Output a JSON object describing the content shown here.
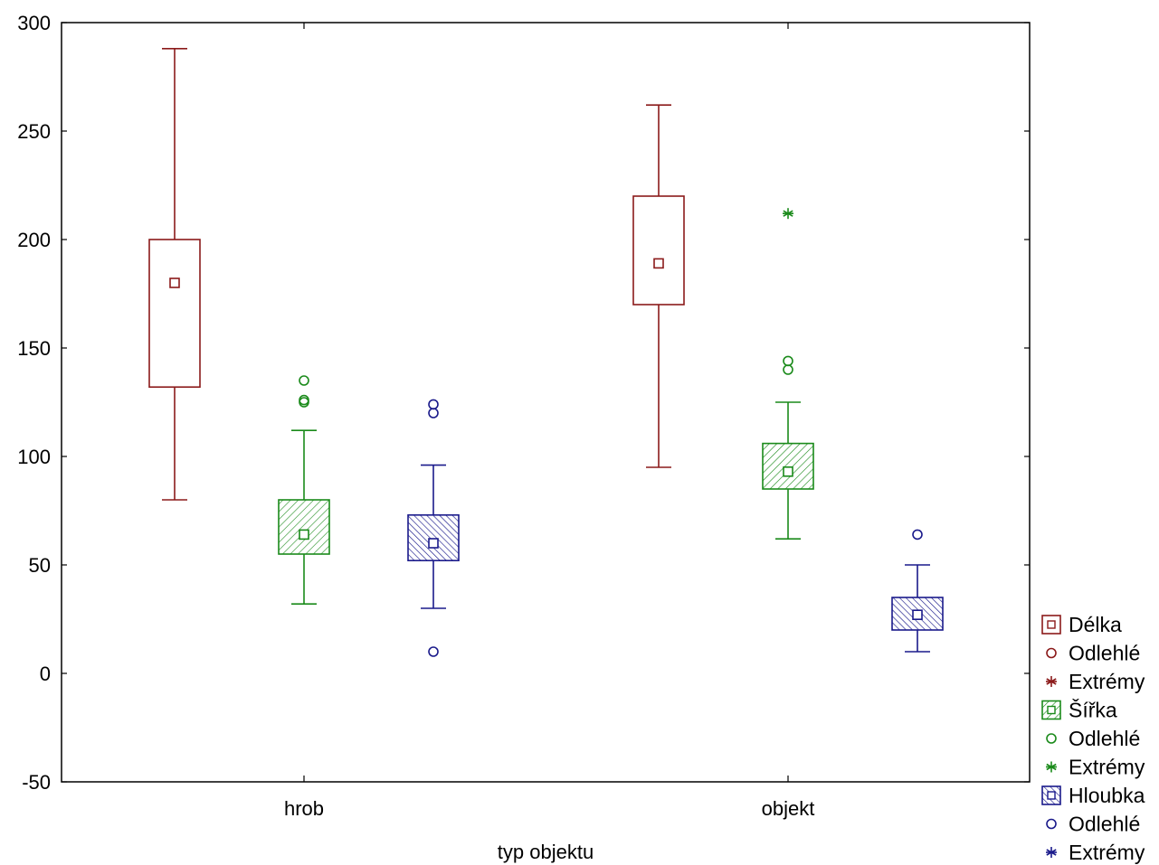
{
  "chart_data": {
    "type": "boxplot",
    "xlabel": "typ objektu",
    "ylabel": "",
    "ylim": [
      -50,
      300
    ],
    "yticks": [
      -50,
      0,
      50,
      100,
      150,
      200,
      250,
      300
    ],
    "categories": [
      "hrob",
      "objekt"
    ],
    "grid": false,
    "legend_position": "bottom-right outside",
    "series": [
      {
        "name": "Délka",
        "color": "#8b1a1a",
        "fill": "none",
        "stats": [
          {
            "category": "hrob",
            "median": 180,
            "q1": 132,
            "q3": 200,
            "whisker_low": 80,
            "whisker_high": 288,
            "outliers": [],
            "extremes": []
          },
          {
            "category": "objekt",
            "median": 189,
            "q1": 170,
            "q3": 220,
            "whisker_low": 95,
            "whisker_high": 262,
            "outliers": [],
            "extremes": []
          }
        ]
      },
      {
        "name": "Šířka",
        "color": "#1a8a1a",
        "fill": "hatch",
        "stats": [
          {
            "category": "hrob",
            "median": 64,
            "q1": 55,
            "q3": 80,
            "whisker_low": 32,
            "whisker_high": 112,
            "outliers": [
              125,
              126,
              135
            ],
            "extremes": []
          },
          {
            "category": "objekt",
            "median": 93,
            "q1": 85,
            "q3": 106,
            "whisker_low": 62,
            "whisker_high": 125,
            "outliers": [
              140,
              144
            ],
            "extremes": [
              212
            ]
          }
        ]
      },
      {
        "name": "Hloubka",
        "color": "#1a1a8b",
        "fill": "crosshatch",
        "stats": [
          {
            "category": "hrob",
            "median": 60,
            "q1": 52,
            "q3": 73,
            "whisker_low": 30,
            "whisker_high": 96,
            "outliers": [
              10,
              120,
              124
            ],
            "extremes": []
          },
          {
            "category": "objekt",
            "median": 27,
            "q1": 20,
            "q3": 35,
            "whisker_low": 10,
            "whisker_high": 50,
            "outliers": [
              64
            ],
            "extremes": []
          }
        ]
      }
    ],
    "legend": [
      {
        "label": "Délka",
        "symbol": "box",
        "series": 0
      },
      {
        "label": "Odlehlé",
        "symbol": "circle",
        "series": 0
      },
      {
        "label": "Extrémy",
        "symbol": "star",
        "series": 0
      },
      {
        "label": "Šířka",
        "symbol": "box",
        "series": 1
      },
      {
        "label": "Odlehlé",
        "symbol": "circle",
        "series": 1
      },
      {
        "label": "Extrémy",
        "symbol": "star",
        "series": 1
      },
      {
        "label": "Hloubka",
        "symbol": "box",
        "series": 2
      },
      {
        "label": "Odlehlé",
        "symbol": "circle",
        "series": 2
      },
      {
        "label": "Extrémy",
        "symbol": "star",
        "series": 2
      }
    ]
  }
}
